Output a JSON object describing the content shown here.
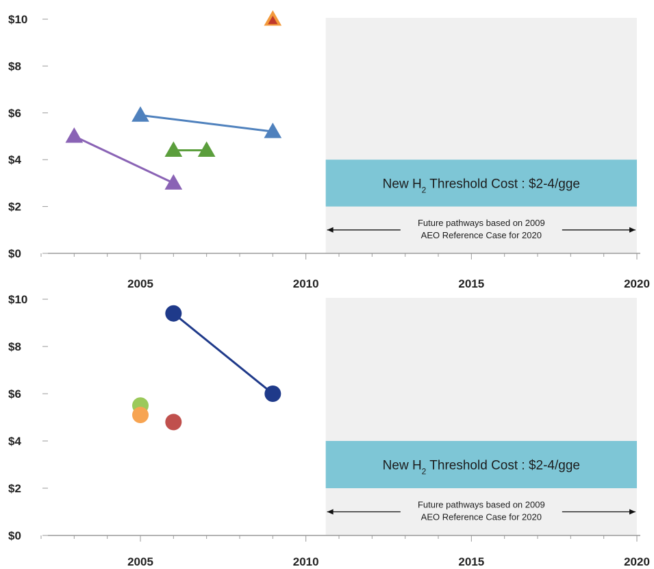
{
  "chart_data": [
    {
      "type": "scatter",
      "marker": "triangle",
      "xlim": [
        2002,
        2020
      ],
      "ylim": [
        0,
        10
      ],
      "xticks": [
        2005,
        2010,
        2015,
        2020
      ],
      "xtick_labels": [
        "2005",
        "2010",
        "2015",
        "2020"
      ],
      "yticks": [
        0,
        2,
        4,
        6,
        8,
        10
      ],
      "ytick_labels": [
        "$0",
        "$2",
        "$4",
        "$6",
        "$8",
        "$10"
      ],
      "grid": false,
      "future_region": {
        "x_start": 2010.6,
        "x_end": 2020,
        "color": "#f0f0f0"
      },
      "threshold_band": {
        "y_low": 2,
        "y_high": 4,
        "label_prefix": "New H",
        "label_sub": "2",
        "label_suffix": " Threshold Cost : $2-4/gge",
        "color": "#7ec6d6"
      },
      "future_note": {
        "line1": "Future pathways based on 2009",
        "line2": "AEO Reference Case for 2020",
        "x_start": 2010.6,
        "x_end": 2020
      },
      "series": [
        {
          "values": [
            {
              "x": 2003,
              "y": 5.0
            },
            {
              "x": 2006,
              "y": 3.0
            }
          ],
          "color": "#8a63b5"
        },
        {
          "values": [
            {
              "x": 2005,
              "y": 5.9
            },
            {
              "x": 2009,
              "y": 5.2
            }
          ],
          "color": "#4f81bd"
        },
        {
          "values": [
            {
              "x": 2006,
              "y": 4.4
            },
            {
              "x": 2007,
              "y": 4.4
            }
          ],
          "color": "#5b9e3c"
        },
        {
          "values": [
            {
              "x": 2009,
              "y": 10.0
            }
          ],
          "color": "#f39a3c",
          "inner_color": "#c0392b"
        }
      ]
    },
    {
      "type": "scatter",
      "marker": "circle",
      "xlim": [
        2002,
        2020
      ],
      "ylim": [
        0,
        10
      ],
      "xticks": [
        2005,
        2010,
        2015,
        2020
      ],
      "xtick_labels": [
        "2005",
        "2010",
        "2015",
        "2020"
      ],
      "yticks": [
        0,
        2,
        4,
        6,
        8,
        10
      ],
      "ytick_labels": [
        "$0",
        "$2",
        "$4",
        "$6",
        "$8",
        "$10"
      ],
      "grid": false,
      "future_region": {
        "x_start": 2010.6,
        "x_end": 2020,
        "color": "#f0f0f0"
      },
      "threshold_band": {
        "y_low": 2,
        "y_high": 4,
        "label_prefix": "New H",
        "label_sub": "2",
        "label_suffix": " Threshold Cost : $2-4/gge",
        "color": "#7ec6d6"
      },
      "future_note": {
        "line1": "Future pathways based on 2009",
        "line2": "AEO Reference Case for 2020",
        "x_start": 2010.6,
        "x_end": 2020
      },
      "series": [
        {
          "values": [
            {
              "x": 2006,
              "y": 9.4
            },
            {
              "x": 2009,
              "y": 6.0
            }
          ],
          "color": "#1f3a8a"
        },
        {
          "values": [
            {
              "x": 2005,
              "y": 5.5
            }
          ],
          "color": "#9bc95a"
        },
        {
          "values": [
            {
              "x": 2005,
              "y": 5.1
            }
          ],
          "color": "#f7a452"
        },
        {
          "values": [
            {
              "x": 2006,
              "y": 4.8
            }
          ],
          "color": "#c0504d"
        }
      ]
    }
  ]
}
